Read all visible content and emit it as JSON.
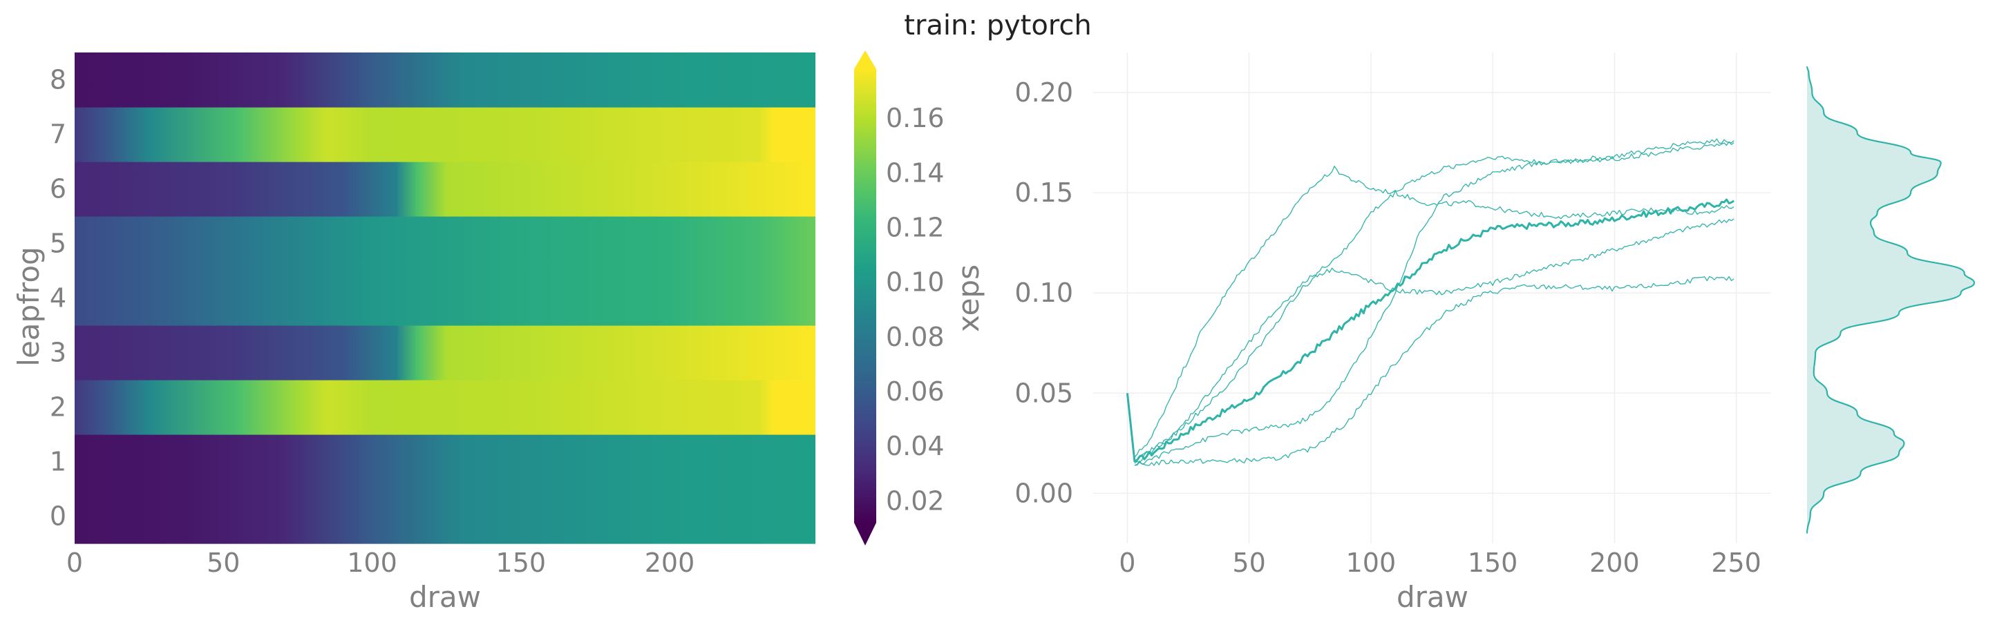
{
  "figure_title": "train: pytorch",
  "colors": {
    "trace": "#2fb3a8",
    "kde_fill": "#d3ecea",
    "text": "#808080",
    "title": "#222222",
    "grid": "#efefef"
  },
  "chart_data": [
    {
      "type": "heatmap",
      "xlabel": "draw",
      "ylabel": "leapfrog",
      "x_ticks": [
        "0",
        "50",
        "100",
        "150",
        "200"
      ],
      "y_ticks": [
        "0",
        "1",
        "2",
        "3",
        "4",
        "5",
        "6",
        "7",
        "8"
      ],
      "xlim": [
        0,
        249
      ],
      "colormap": "viridis",
      "colorbar": {
        "label": "xeps",
        "range": [
          0.012,
          0.178
        ],
        "ticks": [
          "0.02",
          "0.04",
          "0.06",
          "0.08",
          "0.10",
          "0.12",
          "0.14",
          "0.16"
        ],
        "extend": "both"
      },
      "rows": [
        {
          "leapfrog": 0,
          "profile": [
            [
              0,
              0.02
            ],
            [
              35,
              0.022
            ],
            [
              70,
              0.03
            ],
            [
              100,
              0.06
            ],
            [
              130,
              0.09
            ],
            [
              200,
              0.102
            ],
            [
              249,
              0.105
            ]
          ]
        },
        {
          "leapfrog": 1,
          "profile": [
            [
              0,
              0.02
            ],
            [
              35,
              0.022
            ],
            [
              70,
              0.03
            ],
            [
              100,
              0.06
            ],
            [
              130,
              0.09
            ],
            [
              200,
              0.102
            ],
            [
              249,
              0.105
            ]
          ]
        },
        {
          "leapfrog": 2,
          "profile": [
            [
              0,
              0.04
            ],
            [
              10,
              0.055
            ],
            [
              25,
              0.09
            ],
            [
              55,
              0.13
            ],
            [
              75,
              0.155
            ],
            [
              85,
              0.165
            ],
            [
              100,
              0.16
            ],
            [
              150,
              0.162
            ],
            [
              200,
              0.168
            ],
            [
              230,
              0.17
            ],
            [
              235,
              0.178
            ],
            [
              249,
              0.178
            ]
          ]
        },
        {
          "leapfrog": 3,
          "profile": [
            [
              0,
              0.03
            ],
            [
              50,
              0.038
            ],
            [
              90,
              0.055
            ],
            [
              108,
              0.085
            ],
            [
              115,
              0.13
            ],
            [
              125,
              0.158
            ],
            [
              180,
              0.165
            ],
            [
              220,
              0.172
            ],
            [
              249,
              0.178
            ]
          ]
        },
        {
          "leapfrog": 4,
          "profile": [
            [
              0,
              0.05
            ],
            [
              25,
              0.06
            ],
            [
              60,
              0.08
            ],
            [
              100,
              0.1
            ],
            [
              150,
              0.112
            ],
            [
              200,
              0.118
            ],
            [
              230,
              0.128
            ],
            [
              249,
              0.14
            ]
          ]
        },
        {
          "leapfrog": 5,
          "profile": [
            [
              0,
              0.05
            ],
            [
              25,
              0.06
            ],
            [
              60,
              0.08
            ],
            [
              100,
              0.1
            ],
            [
              150,
              0.112
            ],
            [
              200,
              0.118
            ],
            [
              230,
              0.128
            ],
            [
              249,
              0.14
            ]
          ]
        },
        {
          "leapfrog": 6,
          "profile": [
            [
              0,
              0.03
            ],
            [
              50,
              0.038
            ],
            [
              90,
              0.055
            ],
            [
              108,
              0.085
            ],
            [
              115,
              0.13
            ],
            [
              125,
              0.158
            ],
            [
              180,
              0.165
            ],
            [
              220,
              0.172
            ],
            [
              249,
              0.178
            ]
          ]
        },
        {
          "leapfrog": 7,
          "profile": [
            [
              0,
              0.04
            ],
            [
              10,
              0.055
            ],
            [
              25,
              0.09
            ],
            [
              55,
              0.13
            ],
            [
              75,
              0.155
            ],
            [
              85,
              0.165
            ],
            [
              100,
              0.16
            ],
            [
              150,
              0.162
            ],
            [
              200,
              0.168
            ],
            [
              230,
              0.17
            ],
            [
              235,
              0.178
            ],
            [
              249,
              0.178
            ]
          ]
        },
        {
          "leapfrog": 8,
          "profile": [
            [
              0,
              0.02
            ],
            [
              35,
              0.022
            ],
            [
              70,
              0.03
            ],
            [
              100,
              0.06
            ],
            [
              130,
              0.09
            ],
            [
              200,
              0.102
            ],
            [
              249,
              0.105
            ]
          ]
        }
      ]
    },
    {
      "type": "line",
      "xlabel": "draw",
      "ylabel": "",
      "x_ticks": [
        "0",
        "50",
        "100",
        "150",
        "200",
        "250"
      ],
      "y_ticks": [
        "0.00",
        "0.05",
        "0.10",
        "0.15",
        "0.20"
      ],
      "xlim": [
        -14,
        264
      ],
      "ylim": [
        -0.025,
        0.22
      ],
      "grid": true,
      "series": [
        {
          "role": "mean",
          "values": [
            [
              0,
              0.05
            ],
            [
              3,
              0.016
            ],
            [
              10,
              0.02
            ],
            [
              30,
              0.035
            ],
            [
              50,
              0.047
            ],
            [
              70,
              0.065
            ],
            [
              90,
              0.085
            ],
            [
              110,
              0.103
            ],
            [
              130,
              0.122
            ],
            [
              150,
              0.132
            ],
            [
              170,
              0.134
            ],
            [
              190,
              0.135
            ],
            [
              210,
              0.139
            ],
            [
              230,
              0.142
            ],
            [
              249,
              0.146
            ]
          ]
        },
        {
          "role": "draw-a",
          "values": [
            [
              3,
              0.018
            ],
            [
              10,
              0.028
            ],
            [
              30,
              0.08
            ],
            [
              45,
              0.108
            ],
            [
              60,
              0.13
            ],
            [
              75,
              0.152
            ],
            [
              85,
              0.162
            ],
            [
              90,
              0.158
            ],
            [
              100,
              0.152
            ],
            [
              110,
              0.15
            ],
            [
              125,
              0.144
            ],
            [
              140,
              0.145
            ],
            [
              160,
              0.14
            ],
            [
              180,
              0.138
            ],
            [
              200,
              0.14
            ],
            [
              220,
              0.142
            ],
            [
              235,
              0.14
            ],
            [
              249,
              0.143
            ]
          ]
        },
        {
          "role": "draw-b",
          "values": [
            [
              3,
              0.016
            ],
            [
              20,
              0.03
            ],
            [
              40,
              0.06
            ],
            [
              60,
              0.09
            ],
            [
              75,
              0.108
            ],
            [
              85,
              0.112
            ],
            [
              95,
              0.108
            ],
            [
              110,
              0.101
            ],
            [
              130,
              0.1
            ],
            [
              150,
              0.105
            ],
            [
              170,
              0.112
            ],
            [
              190,
              0.118
            ],
            [
              210,
              0.125
            ],
            [
              230,
              0.132
            ],
            [
              249,
              0.137
            ]
          ]
        },
        {
          "role": "draw-c",
          "values": [
            [
              3,
              0.014
            ],
            [
              20,
              0.022
            ],
            [
              40,
              0.03
            ],
            [
              60,
              0.033
            ],
            [
              70,
              0.035
            ],
            [
              80,
              0.042
            ],
            [
              90,
              0.058
            ],
            [
              100,
              0.078
            ],
            [
              110,
              0.1
            ],
            [
              120,
              0.13
            ],
            [
              130,
              0.148
            ],
            [
              150,
              0.16
            ],
            [
              170,
              0.165
            ],
            [
              200,
              0.167
            ],
            [
              230,
              0.172
            ],
            [
              249,
              0.175
            ]
          ]
        },
        {
          "role": "draw-d",
          "values": [
            [
              3,
              0.014
            ],
            [
              20,
              0.016
            ],
            [
              40,
              0.016
            ],
            [
              60,
              0.017
            ],
            [
              75,
              0.022
            ],
            [
              90,
              0.035
            ],
            [
              105,
              0.058
            ],
            [
              115,
              0.072
            ],
            [
              130,
              0.09
            ],
            [
              145,
              0.099
            ],
            [
              160,
              0.103
            ],
            [
              180,
              0.103
            ],
            [
              200,
              0.102
            ],
            [
              220,
              0.104
            ],
            [
              235,
              0.107
            ],
            [
              249,
              0.107
            ]
          ]
        },
        {
          "role": "draw-e",
          "values": [
            [
              3,
              0.015
            ],
            [
              20,
              0.03
            ],
            [
              40,
              0.052
            ],
            [
              55,
              0.075
            ],
            [
              70,
              0.1
            ],
            [
              80,
              0.112
            ],
            [
              90,
              0.122
            ],
            [
              100,
              0.14
            ],
            [
              115,
              0.155
            ],
            [
              130,
              0.162
            ],
            [
              150,
              0.168
            ],
            [
              170,
              0.165
            ],
            [
              200,
              0.168
            ],
            [
              230,
              0.175
            ],
            [
              249,
              0.176
            ]
          ]
        }
      ],
      "density": {
        "orientation": "vertical",
        "profile": [
          [
            -0.02,
            0.0
          ],
          [
            -0.01,
            0.02
          ],
          [
            0.0,
            0.1
          ],
          [
            0.01,
            0.32
          ],
          [
            0.02,
            0.55
          ],
          [
            0.025,
            0.58
          ],
          [
            0.03,
            0.52
          ],
          [
            0.04,
            0.3
          ],
          [
            0.05,
            0.12
          ],
          [
            0.06,
            0.04
          ],
          [
            0.07,
            0.05
          ],
          [
            0.08,
            0.2
          ],
          [
            0.09,
            0.55
          ],
          [
            0.1,
            0.92
          ],
          [
            0.105,
            1.0
          ],
          [
            0.11,
            0.94
          ],
          [
            0.12,
            0.6
          ],
          [
            0.13,
            0.4
          ],
          [
            0.135,
            0.38
          ],
          [
            0.14,
            0.42
          ],
          [
            0.15,
            0.62
          ],
          [
            0.16,
            0.78
          ],
          [
            0.165,
            0.8
          ],
          [
            0.17,
            0.62
          ],
          [
            0.18,
            0.3
          ],
          [
            0.19,
            0.1
          ],
          [
            0.2,
            0.03
          ],
          [
            0.21,
            0.01
          ],
          [
            0.213,
            0.0
          ]
        ]
      }
    }
  ]
}
